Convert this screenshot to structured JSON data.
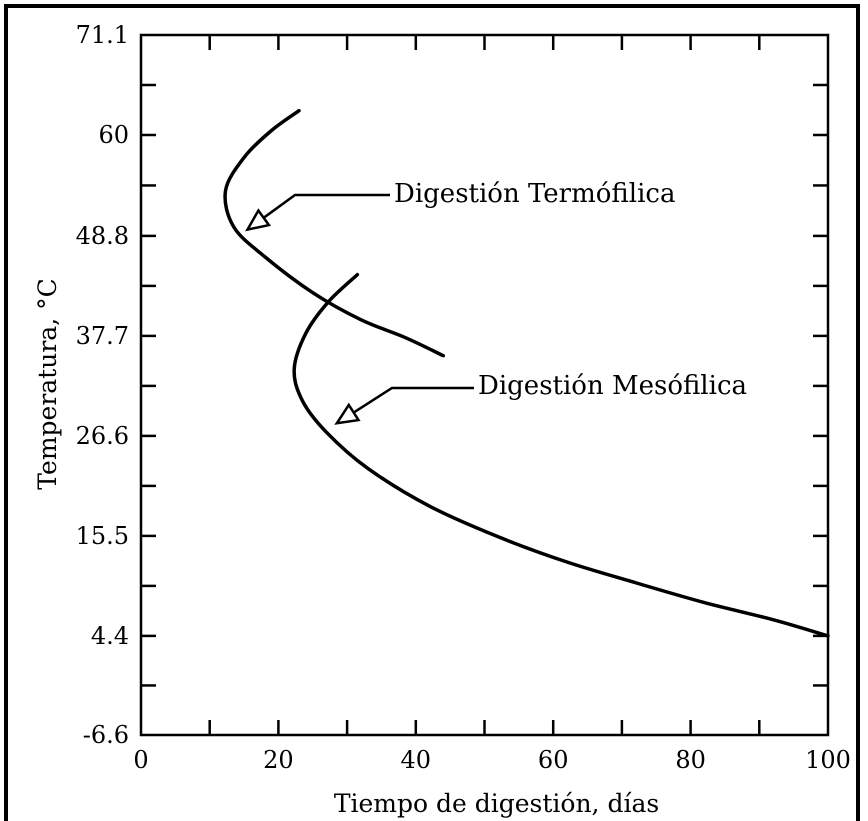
{
  "chart_data": {
    "type": "line",
    "xlabel": "Tiempo de digestión, días",
    "ylabel": "Temperatura, °C",
    "xlim": [
      0,
      100
    ],
    "ylim": [
      -6.6,
      71.1
    ],
    "x_ticks": [
      0,
      20,
      40,
      60,
      80,
      100
    ],
    "y_ticks": [
      -6.6,
      4.4,
      15.5,
      26.6,
      37.7,
      48.8,
      60,
      71.1
    ],
    "y_tick_labels": [
      "-6.6",
      "4.4",
      "15.5",
      "26.6",
      "37.7",
      "48.8",
      "60",
      "71.1"
    ],
    "grid": false,
    "series": [
      {
        "name": "Digestión Termófilica",
        "points": [
          [
            23,
            62.7
          ],
          [
            19,
            60.5
          ],
          [
            15,
            57.5
          ],
          [
            12.3,
            53.8
          ],
          [
            13.5,
            49.8
          ],
          [
            18,
            46.5
          ],
          [
            25,
            42.5
          ],
          [
            32,
            39.5
          ],
          [
            38.5,
            37.5
          ],
          [
            44,
            35.5
          ]
        ]
      },
      {
        "name": "Digestión Mesófilica",
        "points": [
          [
            31.5,
            44.5
          ],
          [
            27.3,
            41.5
          ],
          [
            24,
            38
          ],
          [
            22.3,
            34
          ],
          [
            23.5,
            30.5
          ],
          [
            27,
            27
          ],
          [
            33,
            23
          ],
          [
            42,
            18.8
          ],
          [
            52,
            15.4
          ],
          [
            62,
            12.6
          ],
          [
            72,
            10.3
          ],
          [
            82,
            8.1
          ],
          [
            92,
            6.2
          ],
          [
            100,
            4.4
          ]
        ]
      }
    ],
    "annotations": [
      {
        "text": "Digestión Termófilica",
        "arrow_to": [
          15.5,
          49.5
        ]
      },
      {
        "text": "Digestión Mesófilica",
        "arrow_to": [
          28.5,
          28
        ]
      }
    ]
  }
}
